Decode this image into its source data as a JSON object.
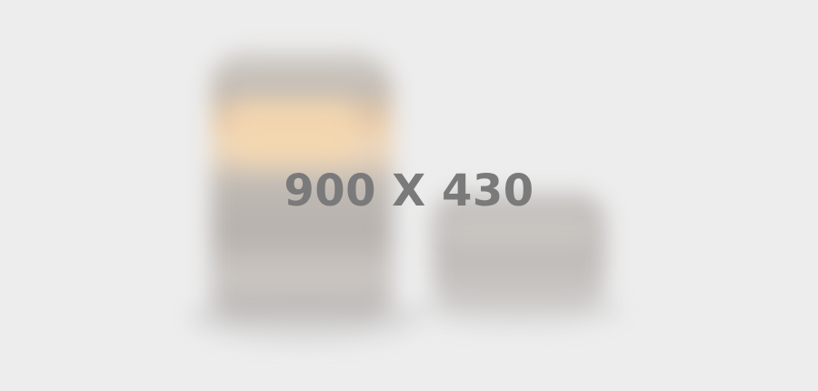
{
  "placeholder": {
    "text": "900 X 430"
  }
}
